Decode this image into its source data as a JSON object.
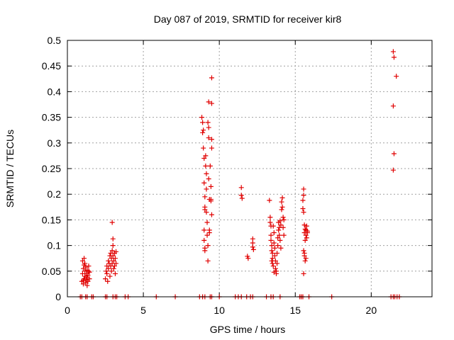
{
  "chart_data": {
    "type": "scatter",
    "title": "Day 087 of 2019, SRMTID for receiver kir8",
    "xlabel": "GPS time / hours",
    "ylabel": "SRMTID / TECUs",
    "xlim": [
      0,
      24
    ],
    "ylim": [
      0,
      0.5
    ],
    "x_ticks": [
      0,
      5,
      10,
      15,
      20
    ],
    "y_ticks": [
      0,
      0.05,
      0.1,
      0.15,
      0.2,
      0.25,
      0.3,
      0.35,
      0.4,
      0.45,
      0.5
    ],
    "x_tick_labels": [
      "0",
      "5",
      "10",
      "15",
      "20"
    ],
    "y_tick_labels": [
      "0",
      "0.05",
      "0.1",
      "0.15",
      "0.2",
      "0.25",
      "0.3",
      "0.35",
      "0.4",
      "0.45",
      "0.5"
    ],
    "grid": true,
    "series": [
      {
        "name": "SRMTID",
        "color": "#e00000",
        "marker": "+",
        "points": [
          [
            0.85,
            0.0
          ],
          [
            0.95,
            0.0
          ],
          [
            1.2,
            0.0
          ],
          [
            1.3,
            0.0
          ],
          [
            1.6,
            0.0
          ],
          [
            1.7,
            0.0
          ],
          [
            2.5,
            0.0
          ],
          [
            2.6,
            0.0
          ],
          [
            3.0,
            0.0
          ],
          [
            3.15,
            0.0
          ],
          [
            3.25,
            0.0
          ],
          [
            3.8,
            0.0
          ],
          [
            4.0,
            0.0
          ],
          [
            5.85,
            0.0
          ],
          [
            7.1,
            0.0
          ],
          [
            8.7,
            0.0
          ],
          [
            8.9,
            0.0
          ],
          [
            9.05,
            0.0
          ],
          [
            9.4,
            0.0
          ],
          [
            9.5,
            0.0
          ],
          [
            10.0,
            0.0
          ],
          [
            11.05,
            0.0
          ],
          [
            11.25,
            0.0
          ],
          [
            11.45,
            0.0
          ],
          [
            11.8,
            0.0
          ],
          [
            12.05,
            0.0
          ],
          [
            12.2,
            0.0
          ],
          [
            13.1,
            0.0
          ],
          [
            13.4,
            0.0
          ],
          [
            13.55,
            0.0
          ],
          [
            14.0,
            0.0
          ],
          [
            15.3,
            0.0
          ],
          [
            15.4,
            0.0
          ],
          [
            15.5,
            0.0
          ],
          [
            15.9,
            0.0
          ],
          [
            17.4,
            0.0
          ],
          [
            21.3,
            0.0
          ],
          [
            21.45,
            0.0
          ],
          [
            21.55,
            0.0
          ],
          [
            21.7,
            0.0
          ],
          [
            21.85,
            0.0
          ],
          [
            0.95,
            0.03
          ],
          [
            1.0,
            0.045
          ],
          [
            1.0,
            0.07
          ],
          [
            1.05,
            0.025
          ],
          [
            1.05,
            0.055
          ],
          [
            1.1,
            0.035
          ],
          [
            1.1,
            0.062
          ],
          [
            1.1,
            0.075
          ],
          [
            1.15,
            0.04
          ],
          [
            1.15,
            0.05
          ],
          [
            1.2,
            0.028
          ],
          [
            1.2,
            0.058
          ],
          [
            1.25,
            0.033
          ],
          [
            1.25,
            0.045
          ],
          [
            1.3,
            0.038
          ],
          [
            1.3,
            0.052
          ],
          [
            1.35,
            0.042
          ],
          [
            1.35,
            0.03
          ],
          [
            1.4,
            0.05
          ],
          [
            1.4,
            0.06
          ],
          [
            1.45,
            0.035
          ],
          [
            1.45,
            0.048
          ],
          [
            1.05,
            0.032
          ],
          [
            1.15,
            0.065
          ],
          [
            1.3,
            0.022
          ],
          [
            2.5,
            0.035
          ],
          [
            2.55,
            0.05
          ],
          [
            2.6,
            0.045
          ],
          [
            2.6,
            0.06
          ],
          [
            2.65,
            0.03
          ],
          [
            2.7,
            0.07
          ],
          [
            2.7,
            0.055
          ],
          [
            2.75,
            0.065
          ],
          [
            2.8,
            0.08
          ],
          [
            2.8,
            0.04
          ],
          [
            2.85,
            0.085
          ],
          [
            2.85,
            0.06
          ],
          [
            2.9,
            0.075
          ],
          [
            2.9,
            0.05
          ],
          [
            2.95,
            0.09
          ],
          [
            2.95,
            0.065
          ],
          [
            2.95,
            0.145
          ],
          [
            3.0,
            0.08
          ],
          [
            3.0,
            0.1
          ],
          [
            3.0,
            0.113
          ],
          [
            3.05,
            0.07
          ],
          [
            3.05,
            0.055
          ],
          [
            3.1,
            0.085
          ],
          [
            3.1,
            0.06
          ],
          [
            3.15,
            0.075
          ],
          [
            3.15,
            0.045
          ],
          [
            3.2,
            0.065
          ],
          [
            3.2,
            0.088
          ],
          [
            8.85,
            0.35
          ],
          [
            8.9,
            0.34
          ],
          [
            8.9,
            0.32
          ],
          [
            8.95,
            0.325
          ],
          [
            8.95,
            0.29
          ],
          [
            9.0,
            0.27
          ],
          [
            9.0,
            0.222
          ],
          [
            9.05,
            0.195
          ],
          [
            9.05,
            0.175
          ],
          [
            9.05,
            0.17
          ],
          [
            9.0,
            0.13
          ],
          [
            9.0,
            0.11
          ],
          [
            9.05,
            0.095
          ],
          [
            9.05,
            0.09
          ],
          [
            9.1,
            0.275
          ],
          [
            9.1,
            0.255
          ],
          [
            9.15,
            0.24
          ],
          [
            9.15,
            0.21
          ],
          [
            9.15,
            0.165
          ],
          [
            9.2,
            0.145
          ],
          [
            9.2,
            0.12
          ],
          [
            9.25,
            0.1
          ],
          [
            9.25,
            0.07
          ],
          [
            9.25,
            0.34
          ],
          [
            9.3,
            0.38
          ],
          [
            9.3,
            0.33
          ],
          [
            9.3,
            0.31
          ],
          [
            9.3,
            0.23
          ],
          [
            9.35,
            0.19
          ],
          [
            9.35,
            0.125
          ],
          [
            9.35,
            0.13
          ],
          [
            9.4,
            0.255
          ],
          [
            9.45,
            0.215
          ],
          [
            9.45,
            0.187
          ],
          [
            9.5,
            0.427
          ],
          [
            9.5,
            0.377
          ],
          [
            9.5,
            0.307
          ],
          [
            9.5,
            0.29
          ],
          [
            9.5,
            0.16
          ],
          [
            9.45,
            0.19
          ],
          [
            11.45,
            0.213
          ],
          [
            11.45,
            0.198
          ],
          [
            11.5,
            0.192
          ],
          [
            11.85,
            0.079
          ],
          [
            11.9,
            0.075
          ],
          [
            12.2,
            0.113
          ],
          [
            12.2,
            0.105
          ],
          [
            12.2,
            0.097
          ],
          [
            12.25,
            0.092
          ],
          [
            13.3,
            0.188
          ],
          [
            13.35,
            0.155
          ],
          [
            13.35,
            0.145
          ],
          [
            13.4,
            0.138
          ],
          [
            13.4,
            0.12
          ],
          [
            13.4,
            0.11
          ],
          [
            13.45,
            0.1
          ],
          [
            13.45,
            0.09
          ],
          [
            13.5,
            0.085
          ],
          [
            13.5,
            0.075
          ],
          [
            13.5,
            0.065
          ],
          [
            13.55,
            0.06
          ],
          [
            13.55,
            0.138
          ],
          [
            13.6,
            0.125
          ],
          [
            13.6,
            0.105
          ],
          [
            13.65,
            0.095
          ],
          [
            13.65,
            0.08
          ],
          [
            13.7,
            0.07
          ],
          [
            13.7,
            0.055
          ],
          [
            13.75,
            0.05
          ],
          [
            13.75,
            0.045
          ],
          [
            13.8,
            0.065
          ],
          [
            13.8,
            0.085
          ],
          [
            13.85,
            0.1
          ],
          [
            13.85,
            0.115
          ],
          [
            13.9,
            0.13
          ],
          [
            13.9,
            0.145
          ],
          [
            13.95,
            0.135
          ],
          [
            13.95,
            0.12
          ],
          [
            14.0,
            0.148
          ],
          [
            14.0,
            0.11
          ],
          [
            14.05,
            0.095
          ],
          [
            14.05,
            0.14
          ],
          [
            14.1,
            0.17
          ],
          [
            14.1,
            0.185
          ],
          [
            14.15,
            0.193
          ],
          [
            14.15,
            0.175
          ],
          [
            14.2,
            0.155
          ],
          [
            14.2,
            0.135
          ],
          [
            14.25,
            0.12
          ],
          [
            14.25,
            0.15
          ],
          [
            13.45,
            0.07
          ],
          [
            13.6,
            0.048
          ],
          [
            15.55,
            0.21
          ],
          [
            15.55,
            0.198
          ],
          [
            15.5,
            0.188
          ],
          [
            15.5,
            0.172
          ],
          [
            15.55,
            0.165
          ],
          [
            15.6,
            0.14
          ],
          [
            15.6,
            0.125
          ],
          [
            15.65,
            0.11
          ],
          [
            15.65,
            0.132
          ],
          [
            15.7,
            0.12
          ],
          [
            15.7,
            0.13
          ],
          [
            15.75,
            0.115
          ],
          [
            15.75,
            0.138
          ],
          [
            15.8,
            0.125
          ],
          [
            15.55,
            0.09
          ],
          [
            15.6,
            0.085
          ],
          [
            15.6,
            0.08
          ],
          [
            15.65,
            0.07
          ],
          [
            15.7,
            0.075
          ],
          [
            15.55,
            0.045
          ],
          [
            15.8,
            0.128
          ],
          [
            21.45,
            0.478
          ],
          [
            21.5,
            0.467
          ],
          [
            21.65,
            0.43
          ],
          [
            21.45,
            0.372
          ],
          [
            21.5,
            0.279
          ],
          [
            21.45,
            0.247
          ]
        ]
      }
    ]
  }
}
